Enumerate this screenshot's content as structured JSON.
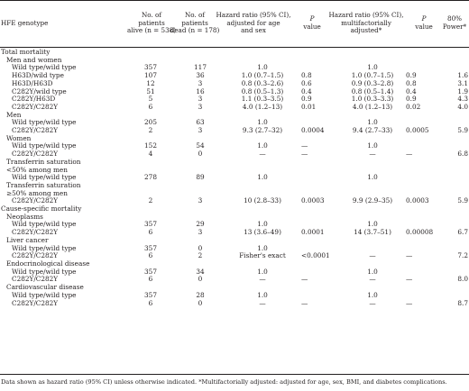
{
  "header": {
    "genotype": "HFE genotype",
    "alive_line1": "No. of",
    "alive_line2": "patients",
    "alive_line3": "alive (n = 538)",
    "dead_line1": "No. of",
    "dead_line2": "patients",
    "dead_line3": "dead (n = 178)",
    "hr1_line1": "Hazard ratio (95% CI),",
    "hr1_line2": "adjusted for age",
    "hr1_line3": "and sex",
    "p1_line1": "P",
    "p1_line2": "value",
    "hr2_line1": "Hazard ratio (95% CI),",
    "hr2_line2": "multifactorially",
    "hr2_line3": "adjusted*",
    "p2_line1": "P",
    "p2_line2": "value",
    "power_line1": "80%",
    "power_line2": "Power*"
  },
  "rows": [
    {
      "label": "Total mortality",
      "alive": "",
      "dead": "",
      "hr1": "",
      "p1": "",
      "hr2": "",
      "p2": "",
      "power": ""
    },
    {
      "label": "Men and women",
      "alive": "",
      "dead": "",
      "hr1": "",
      "p1": "",
      "hr2": "",
      "p2": "",
      "power": ""
    },
    {
      "label": "Wild type/wild type",
      "alive": "357",
      "dead": "117",
      "hr1": "1.0",
      "p1": "",
      "hr2": "1.0",
      "p2": "",
      "power": ""
    },
    {
      "label": "H63D/wild type",
      "alive": "107",
      "dead": "36",
      "hr1": "1.0 (0.7–1.5)",
      "p1": "0.8",
      "hr2": "1.0 (0.7–1.5)",
      "p2": "0.9",
      "power": "1.6"
    },
    {
      "label": "H63D/H63D",
      "alive": "12",
      "dead": "3",
      "hr1": "0.8 (0.3–2.6)",
      "p1": "0.6",
      "hr2": "0.9 (0.3–2.8)",
      "p2": "0.8",
      "power": "3.1"
    },
    {
      "label": "C282Y/wild type",
      "alive": "51",
      "dead": "16",
      "hr1": "0.8 (0.5–1.3)",
      "p1": "0.4",
      "hr2": "0.8 (0.5–1.4)",
      "p2": "0.4",
      "power": "1.9"
    },
    {
      "label": "C282Y/H63D",
      "alive": "5",
      "dead": "3",
      "hr1": "1.1 (0.3–3.5)",
      "p1": "0.9",
      "hr2": "1.0 (0.3–3.3)",
      "p2": "0.9",
      "power": "4.3"
    },
    {
      "label": "C282Y/C282Y",
      "alive": "6",
      "dead": "3",
      "hr1": "4.0 (1.2–13)",
      "p1": "0.01",
      "hr2": "4.0 (1.2–13)",
      "p2": "0.02",
      "power": "4.0"
    },
    {
      "label": "Men",
      "alive": "",
      "dead": "",
      "hr1": "",
      "p1": "",
      "hr2": "",
      "p2": "",
      "power": ""
    },
    {
      "label": "Wild type/wild type",
      "alive": "205",
      "dead": "63",
      "hr1": "1.0",
      "p1": "",
      "hr2": "1.0",
      "p2": "",
      "power": ""
    },
    {
      "label": "C282Y/C282Y",
      "alive": "2",
      "dead": "3",
      "hr1": "9.3 (2.7–32)",
      "p1": "0.0004",
      "hr2": "9.4 (2.7–33)",
      "p2": "0.0005",
      "power": "5.9"
    },
    {
      "label": "Women",
      "alive": "",
      "dead": "",
      "hr1": "",
      "p1": "",
      "hr2": "",
      "p2": "",
      "power": ""
    },
    {
      "label": "Wild type/wild type",
      "alive": "152",
      "dead": "54",
      "hr1": "1.0",
      "p1": "—",
      "hr2": "1.0",
      "p2": "",
      "power": ""
    },
    {
      "label": "C282Y/C282Y",
      "alive": "4",
      "dead": "0",
      "hr1": "—",
      "p1": "—",
      "hr2": "—",
      "p2": "—",
      "power": "6.8"
    },
    {
      "label": "Transferrin saturation",
      "alive": "",
      "dead": "",
      "hr1": "",
      "p1": "",
      "hr2": "",
      "p2": "",
      "power": ""
    },
    {
      "label": "<50% among men",
      "alive": "",
      "dead": "",
      "hr1": "",
      "p1": "",
      "hr2": "",
      "p2": "",
      "power": ""
    },
    {
      "label": "Wild type/wild type",
      "alive": "278",
      "dead": "89",
      "hr1": "1.0",
      "p1": "",
      "hr2": "1.0",
      "p2": "",
      "power": ""
    },
    {
      "label": "Transferrin saturation",
      "alive": "",
      "dead": "",
      "hr1": "",
      "p1": "",
      "hr2": "",
      "p2": "",
      "power": ""
    },
    {
      "label": "≥50% among men",
      "alive": "",
      "dead": "",
      "hr1": "",
      "p1": "",
      "hr2": "",
      "p2": "",
      "power": ""
    },
    {
      "label": "C282Y/C282Y",
      "alive": "2",
      "dead": "3",
      "hr1": "10 (2.8–33)",
      "p1": "0.0003",
      "hr2": "9.9 (2.9–35)",
      "p2": "0.0003",
      "power": "5.9"
    },
    {
      "label": "Cause-specific mortality",
      "alive": "",
      "dead": "",
      "hr1": "",
      "p1": "",
      "hr2": "",
      "p2": "",
      "power": ""
    },
    {
      "label": "Neoplasms",
      "alive": "",
      "dead": "",
      "hr1": "",
      "p1": "",
      "hr2": "",
      "p2": "",
      "power": ""
    },
    {
      "label": "Wild type/wild type",
      "alive": "357",
      "dead": "29",
      "hr1": "1.0",
      "p1": "",
      "hr2": "1.0",
      "p2": "",
      "power": ""
    },
    {
      "label": "C282Y/C282Y",
      "alive": "6",
      "dead": "3",
      "hr1": "13 (3.6–49)",
      "p1": "0.0001",
      "hr2": "14 (3.7–51)",
      "p2": "0.00008",
      "power": "6.7"
    },
    {
      "label": "Liver cancer",
      "alive": "",
      "dead": "",
      "hr1": "",
      "p1": "",
      "hr2": "",
      "p2": "",
      "power": ""
    },
    {
      "label": "Wild type/wild type",
      "alive": "357",
      "dead": "0",
      "hr1": "1.0",
      "p1": "",
      "hr2": "",
      "p2": "",
      "power": ""
    },
    {
      "label": "C282Y/C282Y",
      "alive": "6",
      "dead": "2",
      "hr1": "Fisher's exact",
      "p1": "<0.0001",
      "hr2": "—",
      "p2": "—",
      "power": "7.2"
    },
    {
      "label": "Endocrinological disease",
      "alive": "",
      "dead": "",
      "hr1": "",
      "p1": "",
      "hr2": "",
      "p2": "",
      "power": ""
    },
    {
      "label": "Wild type/wild type",
      "alive": "357",
      "dead": "34",
      "hr1": "1.0",
      "p1": "",
      "hr2": "1.0",
      "p2": "",
      "power": ""
    },
    {
      "label": "C282Y/C282Y",
      "alive": "6",
      "dead": "0",
      "hr1": "—",
      "p1": "—",
      "hr2": "—",
      "p2": "—",
      "power": "8.0"
    },
    {
      "label": "Cardiovascular disease",
      "alive": "",
      "dead": "",
      "hr1": "",
      "p1": "",
      "hr2": "",
      "p2": "",
      "power": ""
    },
    {
      "label": "Wild type/wild type",
      "alive": "357",
      "dead": "28",
      "hr1": "1.0",
      "p1": "",
      "hr2": "1.0",
      "p2": "",
      "power": ""
    },
    {
      "label": "C282Y/C282Y",
      "alive": "6",
      "dead": "0",
      "hr1": "—",
      "p1": "—",
      "hr2": "—",
      "p2": "—",
      "power": "8.7"
    }
  ],
  "footnote": "Data shown as hazard ratio (95% CI) unless otherwise indicated. *Multifactorially adjusted: adjusted for age, sex, BMI, and diabetes complications."
}
